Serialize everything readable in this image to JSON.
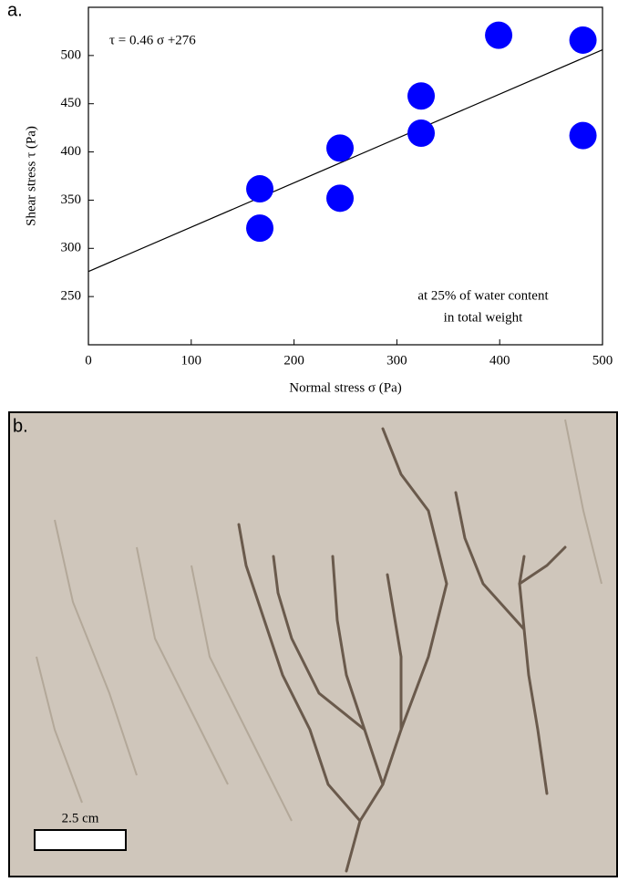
{
  "chart_data": {
    "type": "scatter",
    "panel_label": "a.",
    "annotation": "τ = 0.46   σ +276",
    "note_lines": [
      "at 25% of water content",
      "in total weight"
    ],
    "xlabel": "Normal stress σ (Pa)",
    "ylabel": "Shear stress  τ (Pa)",
    "xlim": [
      0,
      500
    ],
    "xticks": [
      0,
      100,
      200,
      300,
      400,
      500
    ],
    "ylim": [
      200,
      550
    ],
    "yticks": [
      250,
      300,
      350,
      400,
      450,
      500
    ],
    "series": [
      {
        "color": "#0000ff",
        "x": [
          166.7,
          166.7,
          244.7,
          244.7,
          323.6,
          323.6,
          399,
          481,
          481
        ],
        "values": [
          361.7,
          321,
          404,
          352,
          458,
          419.5,
          521,
          516,
          417
        ]
      }
    ],
    "fit_line": {
      "x": [
        0,
        500
      ],
      "values": [
        276,
        506
      ]
    }
  },
  "photo": {
    "panel_label": "b.",
    "scale_label": "2.5 cm"
  }
}
